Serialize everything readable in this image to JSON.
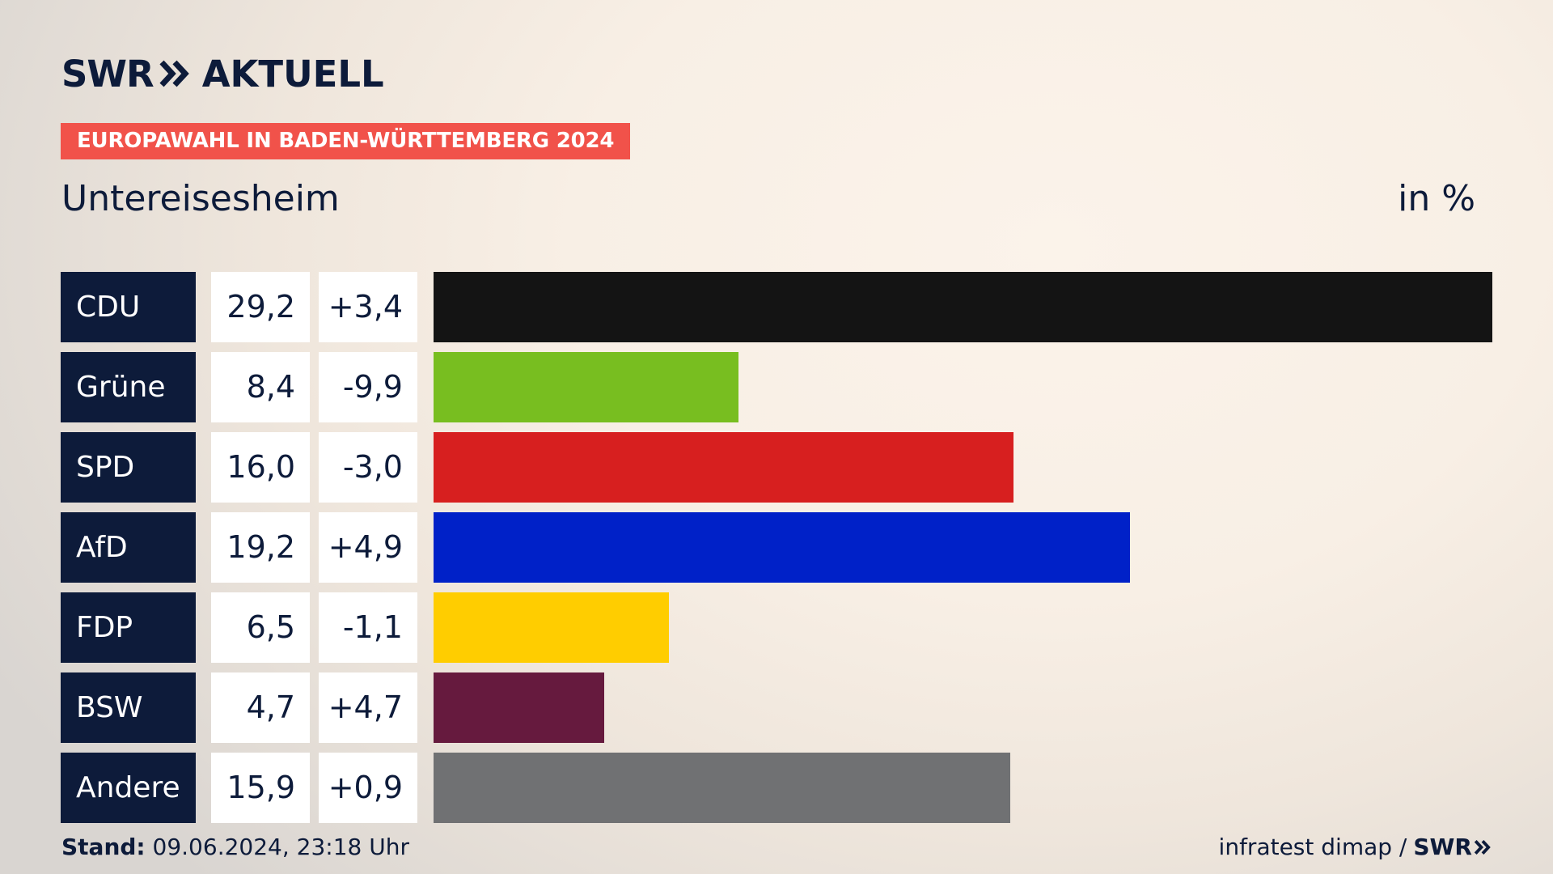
{
  "header": {
    "logo_swr": "SWR",
    "logo_aktuell": "AKTUELL",
    "chevrons_icon": "double-chevron-right-icon"
  },
  "badge": "EUROPAWAHL IN BADEN-WÜRTTEMBERG 2024",
  "place": "Untereisesheim",
  "unit": "in %",
  "footer": {
    "stand_label": "Stand:",
    "stand_value": "09.06.2024, 23:18 Uhr",
    "source": "infratest dimap /",
    "source_swr": "SWR"
  },
  "chart_data": {
    "type": "bar",
    "orientation": "horizontal",
    "categories": [
      "CDU",
      "Grüne",
      "SPD",
      "AfD",
      "FDP",
      "BSW",
      "Andere"
    ],
    "values": [
      29.2,
      8.4,
      16.0,
      19.2,
      6.5,
      4.7,
      15.9
    ],
    "value_labels": [
      "29,2",
      "8,4",
      "16,0",
      "19,2",
      "6,5",
      "4,7",
      "15,9"
    ],
    "diff_labels": [
      "+3,4",
      "-9,9",
      "-3,0",
      "+4,9",
      "-1,1",
      "+4,7",
      "+0,9"
    ],
    "colors": [
      "#141414",
      "#78be20",
      "#d71f1f",
      "#0021c8",
      "#ffcd00",
      "#661a3e",
      "#707173"
    ],
    "title": "Untereisesheim",
    "ylabel": "in %",
    "xlim": [
      0,
      29.2
    ],
    "grid": false,
    "legend": "none"
  }
}
